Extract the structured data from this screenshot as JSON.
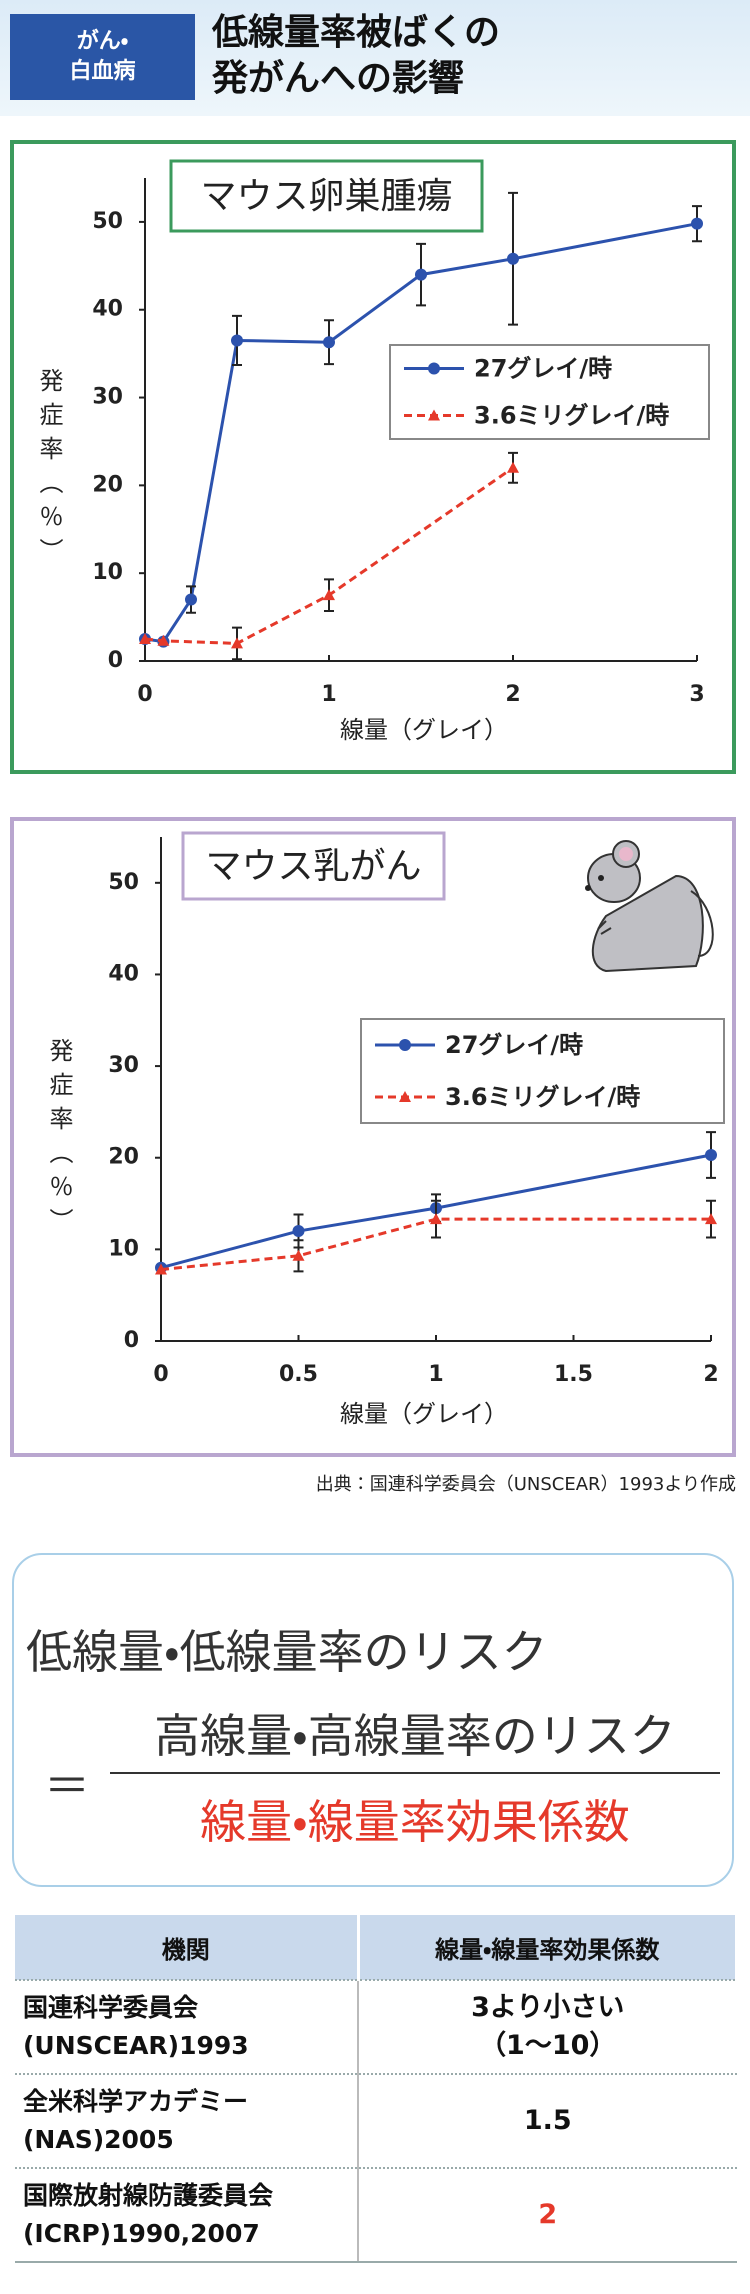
{
  "header": {
    "tag": [
      "がん・",
      "白血病"
    ],
    "title": [
      "低線量率被ばくの",
      "発がんへの影響"
    ]
  },
  "chart_data": [
    {
      "type": "line",
      "title": "マウス卵巣腫瘍",
      "x_label": "線量（グレイ）",
      "y_label": "発症率（％）",
      "xlim": [
        0,
        3
      ],
      "xticks": [
        0,
        1,
        2,
        3
      ],
      "ylim": [
        0,
        55
      ],
      "yticks": [
        0,
        10,
        20,
        30,
        40,
        50
      ],
      "frame_color": "#3b9a5c",
      "series": [
        {
          "name": "27グレイ/時",
          "color": "#2c52ad",
          "line_style": "solid",
          "marker": "circle",
          "x": [
            0,
            0.1,
            0.25,
            0.5,
            1,
            1.5,
            2,
            3
          ],
          "values": [
            2.5,
            2.2,
            7,
            36.5,
            36.3,
            44,
            45.8,
            49.8
          ],
          "errors": [
            null,
            null,
            1.5,
            2.8,
            2.5,
            3.5,
            7.5,
            2
          ]
        },
        {
          "name": "3.6ミリグレイ/時",
          "color": "#e5392a",
          "line_style": "dashed",
          "marker": "triangle",
          "x": [
            0,
            0.1,
            0.5,
            1,
            2
          ],
          "values": [
            2.5,
            2.3,
            2,
            7.5,
            22
          ],
          "errors": [
            null,
            null,
            1.8,
            1.8,
            1.7
          ]
        }
      ]
    },
    {
      "type": "line",
      "title": "マウス乳がん",
      "x_label": "線量（グレイ）",
      "y_label": "発症率（％）",
      "xlim": [
        0,
        2
      ],
      "xticks": [
        0,
        0.5,
        1,
        1.5,
        2
      ],
      "ylim": [
        0,
        55
      ],
      "yticks": [
        0,
        10,
        20,
        30,
        40,
        50
      ],
      "frame_color": "#b9a6cf",
      "series": [
        {
          "name": "27グレイ/時",
          "color": "#2c52ad",
          "line_style": "solid",
          "marker": "circle",
          "x": [
            0,
            0.5,
            1,
            2
          ],
          "values": [
            8,
            12,
            14.5,
            20.3
          ],
          "errors": [
            null,
            1.8,
            1.5,
            2.5
          ]
        },
        {
          "name": "3.6ミリグレイ/時",
          "color": "#e5392a",
          "line_style": "dashed",
          "marker": "triangle",
          "x": [
            0,
            0.5,
            1,
            2
          ],
          "values": [
            7.8,
            9.3,
            13.3,
            13.3
          ],
          "errors": [
            null,
            1.7,
            2,
            2
          ]
        }
      ]
    }
  ],
  "source": "出典：国連科学委員会（UNSCEAR）1993より作成",
  "formula": {
    "lhs": "低線量・低線量率のリスク",
    "equals": "＝",
    "numerator": "高線量・高線量率のリスク",
    "denominator": "線量・線量率効果係数"
  },
  "table": {
    "header": [
      "機関",
      "線量・線量率効果係数"
    ],
    "rows": [
      [
        [
          "国連科学委員会",
          "(UNSCEAR)1993"
        ],
        [
          "3より小さい",
          "（1～10）"
        ]
      ],
      [
        [
          "全米科学アカデミー",
          "(NAS)2005"
        ],
        [
          1.5
        ]
      ],
      [
        [
          "国際放射線防護委員会",
          "(ICRP)1990,2007"
        ],
        [
          2
        ]
      ]
    ],
    "highlight_color": "#e5392a"
  }
}
